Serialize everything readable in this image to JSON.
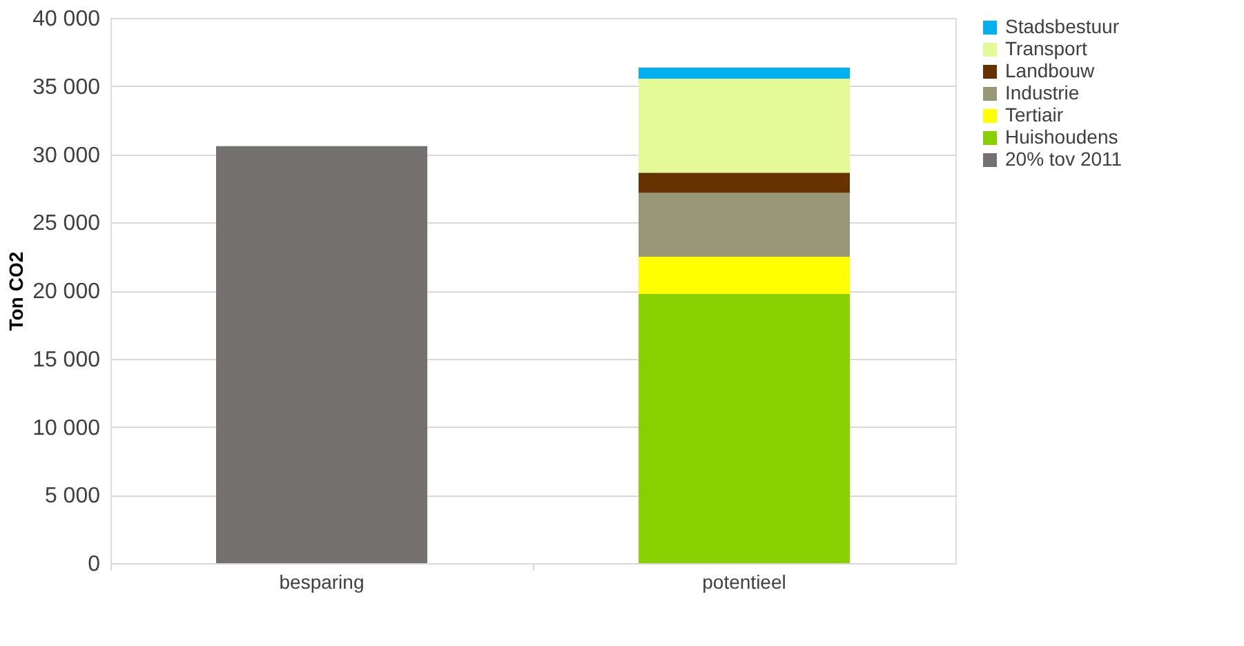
{
  "chart_data": {
    "type": "bar",
    "stacked": true,
    "ylabel": "Ton CO2",
    "categories": [
      "besparing",
      "potentieel"
    ],
    "series": [
      {
        "name": "20% tov 2011",
        "color": "#767171",
        "values": [
          30600,
          null
        ]
      },
      {
        "name": "Huishoudens",
        "color": "#88d000",
        "values": [
          null,
          19750
        ]
      },
      {
        "name": "Tertiair",
        "color": "#ffff00",
        "values": [
          null,
          2730
        ]
      },
      {
        "name": "Industrie",
        "color": "#989878",
        "values": [
          null,
          4680
        ]
      },
      {
        "name": "Landbouw",
        "color": "#663300",
        "values": [
          null,
          1490
        ]
      },
      {
        "name": "Transport",
        "color": "#e3fa96",
        "values": [
          null,
          6900
        ]
      },
      {
        "name": "Stadsbestuur",
        "color": "#00b0f0",
        "values": [
          null,
          810
        ]
      }
    ],
    "ylim": [
      0,
      40000
    ],
    "yticks": [
      0,
      {
        "value": 5000,
        "label": "5 000"
      },
      {
        "value": 10000,
        "label": "10 000"
      },
      {
        "value": 15000,
        "label": "15 000"
      },
      {
        "value": 20000,
        "label": "20 000"
      },
      {
        "value": 25000,
        "label": "25 000"
      },
      {
        "value": 30000,
        "label": "30 000"
      },
      {
        "value": 35000,
        "label": "35 000"
      },
      {
        "value": 40000,
        "label": "40 000"
      }
    ],
    "grid": "y",
    "legend": "right"
  }
}
